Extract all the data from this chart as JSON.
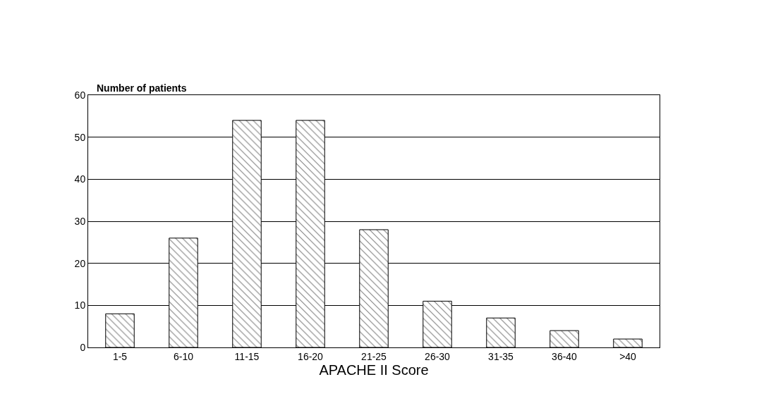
{
  "chart_data": {
    "type": "bar",
    "ylabel": "Number of patients",
    "xlabel": "APACHE II Score",
    "categories": [
      "1-5",
      "6-10",
      "11-15",
      "16-20",
      "21-25",
      "26-30",
      "31-35",
      "36-40",
      ">40"
    ],
    "values": [
      8,
      26,
      54,
      54,
      28,
      11,
      7,
      4,
      2
    ],
    "color": "#000000",
    "ylim": [
      0,
      60
    ],
    "yticks": [
      0,
      10,
      20,
      30,
      40,
      50,
      60
    ],
    "grid": "y",
    "legend": false
  }
}
